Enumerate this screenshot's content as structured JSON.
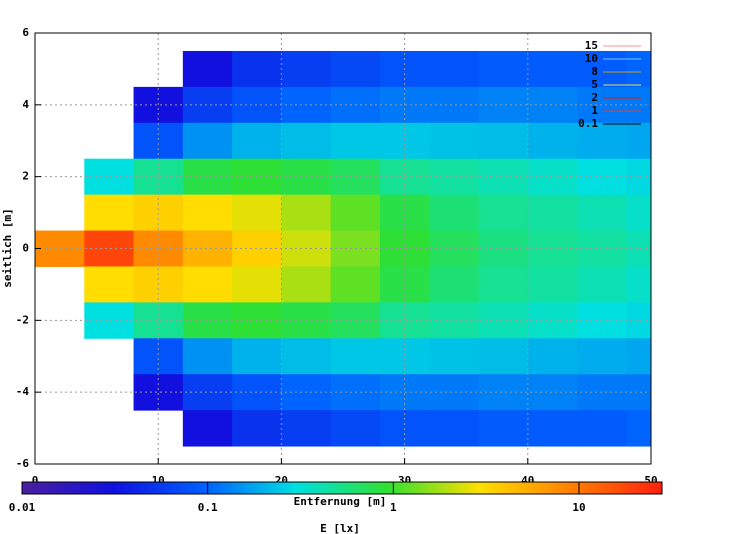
{
  "chart_data": {
    "type": "heatmap",
    "x_label": "Entfernung [m]",
    "y_label": "seitlich [m]",
    "colorbar_label": "E [lx]",
    "x": [
      2,
      6,
      10,
      14,
      18,
      22,
      26,
      30,
      34,
      38,
      42,
      46,
      50
    ],
    "y": [
      5,
      4,
      3,
      2,
      1,
      0,
      -1,
      -2,
      -3,
      -4,
      -5
    ],
    "values": [
      [
        null,
        null,
        null,
        0.03,
        0.05,
        0.06,
        0.07,
        0.08,
        0.08,
        0.09,
        0.09,
        0.09,
        0.1
      ],
      [
        null,
        null,
        0.03,
        0.06,
        0.08,
        0.1,
        0.11,
        0.12,
        0.12,
        0.13,
        0.13,
        0.12,
        0.12
      ],
      [
        null,
        null,
        0.08,
        0.15,
        0.2,
        0.22,
        0.24,
        0.24,
        0.23,
        0.22,
        0.2,
        0.19,
        0.18
      ],
      [
        null,
        0.3,
        0.5,
        0.8,
        0.9,
        0.8,
        0.7,
        0.5,
        0.45,
        0.4,
        0.35,
        0.3,
        0.28
      ],
      [
        null,
        3,
        3.5,
        3,
        2.5,
        1.8,
        1.2,
        0.8,
        0.6,
        0.5,
        0.45,
        0.4,
        0.35
      ],
      [
        8,
        18,
        8,
        5,
        3.5,
        2.2,
        1.4,
        0.9,
        0.7,
        0.55,
        0.5,
        0.45,
        0.4
      ],
      [
        null,
        3,
        3.5,
        3,
        2.5,
        1.8,
        1.2,
        0.8,
        0.6,
        0.5,
        0.45,
        0.4,
        0.35
      ],
      [
        null,
        0.3,
        0.5,
        0.8,
        0.9,
        0.8,
        0.7,
        0.5,
        0.45,
        0.4,
        0.35,
        0.3,
        0.28
      ],
      [
        null,
        null,
        0.08,
        0.15,
        0.2,
        0.22,
        0.24,
        0.24,
        0.23,
        0.22,
        0.2,
        0.19,
        0.18
      ],
      [
        null,
        null,
        0.03,
        0.06,
        0.08,
        0.1,
        0.11,
        0.12,
        0.12,
        0.13,
        0.13,
        0.12,
        0.12
      ],
      [
        null,
        null,
        null,
        0.03,
        0.05,
        0.06,
        0.07,
        0.08,
        0.08,
        0.09,
        0.09,
        0.09,
        0.1
      ]
    ],
    "xlim": [
      0,
      50
    ],
    "xticks": [
      0,
      10,
      20,
      30,
      40,
      50
    ],
    "ylim": [
      -6,
      6
    ],
    "yticks": [
      -6,
      -4,
      -2,
      0,
      2,
      4,
      6
    ],
    "grid": true,
    "clim": [
      0.01,
      28
    ],
    "cticks": [
      0.01,
      0.1,
      1,
      10
    ],
    "clog": true,
    "colormap": [
      "#4b1f9e",
      "#1010e0",
      "#0060ff",
      "#00e0e0",
      "#30e030",
      "#ffe000",
      "#ff8000",
      "#ff2010"
    ],
    "contours": [
      {
        "level": 15,
        "color": "#ff9090"
      },
      {
        "level": 10,
        "color": "#80c0ff"
      },
      {
        "level": 8,
        "color": "#d0a000"
      },
      {
        "level": 5,
        "color": "#e8e060"
      },
      {
        "level": 2,
        "color": "#d02020"
      },
      {
        "level": 1,
        "color": "#e04040"
      },
      {
        "level": 0.1,
        "color": "#000000"
      }
    ]
  }
}
